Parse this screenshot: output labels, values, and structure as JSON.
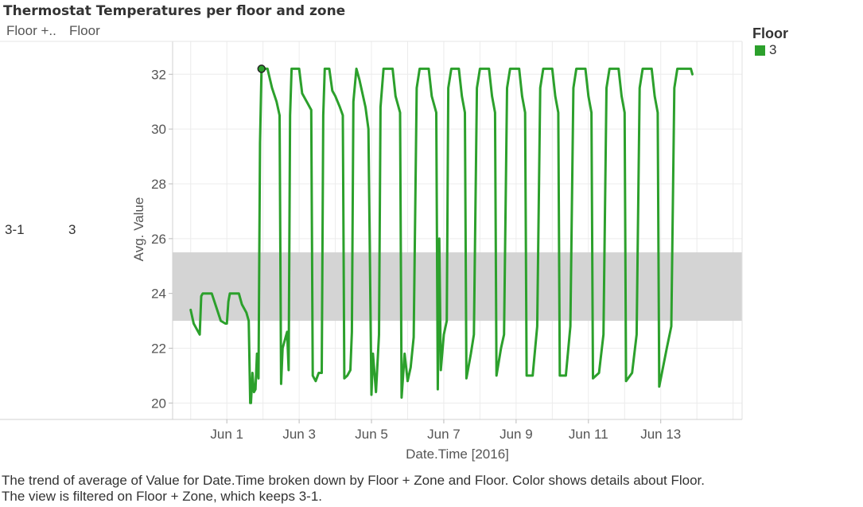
{
  "header": {
    "title": "Thermostat Temperatures per floor and zone",
    "row_header_1": "Floor +..",
    "row_header_2": "Floor",
    "row_value_1": "3-1",
    "row_value_2": "3"
  },
  "legend": {
    "title": "Floor",
    "items": [
      {
        "label": "3",
        "color": "#2ca02c"
      }
    ]
  },
  "caption": "The trend of average of Value for Date.Time broken down by Floor + Zone and Floor.  Color shows details about Floor. The view is filtered on Floor + Zone, which keeps 3-1.",
  "chart_data": {
    "type": "line",
    "title": "Thermostat Temperatures per floor and zone",
    "xlabel": "Date.Time [2016]",
    "ylabel": "Avg. Value",
    "x_tick_labels": [
      "Jun 1",
      "Jun 3",
      "Jun 5",
      "Jun 7",
      "Jun 9",
      "Jun 11",
      "Jun 13"
    ],
    "y_ticks": [
      20,
      22,
      24,
      26,
      28,
      30,
      32
    ],
    "xlim": [
      "2016-05-30T12:00",
      "2016-06-15T06:00"
    ],
    "ylim": [
      19.4,
      33.2
    ],
    "grid": true,
    "reference_band": {
      "from": 23.0,
      "to": 25.5,
      "color": "#d4d4d4"
    },
    "line_color": "#2ca02c",
    "series": [
      {
        "name": "3",
        "points": [
          [
            "2016-05-31T00:00",
            23.4
          ],
          [
            "2016-05-31T02:00",
            22.9
          ],
          [
            "2016-05-31T06:00",
            22.5
          ],
          [
            "2016-05-31T07:00",
            23.9
          ],
          [
            "2016-05-31T08:00",
            24.0
          ],
          [
            "2016-05-31T14:00",
            24.0
          ],
          [
            "2016-05-31T17:00",
            23.5
          ],
          [
            "2016-05-31T20:00",
            23.0
          ],
          [
            "2016-05-31T23:00",
            22.9
          ],
          [
            "2016-06-01T00:00",
            22.9
          ],
          [
            "2016-06-01T01:00",
            23.7
          ],
          [
            "2016-06-01T02:00",
            24.0
          ],
          [
            "2016-06-01T08:00",
            24.0
          ],
          [
            "2016-06-01T10:00",
            23.6
          ],
          [
            "2016-06-01T13:00",
            23.3
          ],
          [
            "2016-06-01T14:30",
            23.0
          ],
          [
            "2016-06-01T15:30",
            20.0
          ],
          [
            "2016-06-01T16:00",
            20.0
          ],
          [
            "2016-06-01T17:00",
            21.1
          ],
          [
            "2016-06-01T18:00",
            20.4
          ],
          [
            "2016-06-01T19:00",
            20.5
          ],
          [
            "2016-06-01T20:00",
            21.8
          ],
          [
            "2016-06-01T21:00",
            20.9
          ],
          [
            "2016-06-01T22:00",
            29.5
          ],
          [
            "2016-06-01T23:00",
            32.2
          ],
          [
            "2016-06-02T03:00",
            32.2
          ],
          [
            "2016-06-02T06:00",
            31.5
          ],
          [
            "2016-06-02T09:00",
            31.0
          ],
          [
            "2016-06-02T11:00",
            30.5
          ],
          [
            "2016-06-02T12:00",
            20.7
          ],
          [
            "2016-06-02T13:00",
            22.0
          ],
          [
            "2016-06-02T15:00",
            22.4
          ],
          [
            "2016-06-02T16:00",
            22.6
          ],
          [
            "2016-06-02T17:00",
            21.2
          ],
          [
            "2016-06-02T18:00",
            30.5
          ],
          [
            "2016-06-02T19:00",
            32.2
          ],
          [
            "2016-06-03T00:00",
            32.2
          ],
          [
            "2016-06-03T02:00",
            31.3
          ],
          [
            "2016-06-03T05:00",
            31.0
          ],
          [
            "2016-06-03T08:00",
            30.7
          ],
          [
            "2016-06-03T09:00",
            21.0
          ],
          [
            "2016-06-03T11:00",
            20.8
          ],
          [
            "2016-06-03T13:00",
            21.1
          ],
          [
            "2016-06-03T15:00",
            21.1
          ],
          [
            "2016-06-03T16:00",
            30.5
          ],
          [
            "2016-06-03T17:00",
            32.2
          ],
          [
            "2016-06-03T20:00",
            32.2
          ],
          [
            "2016-06-03T22:00",
            31.4
          ],
          [
            "2016-06-04T00:00",
            31.2
          ],
          [
            "2016-06-04T03:00",
            30.8
          ],
          [
            "2016-06-04T05:00",
            30.5
          ],
          [
            "2016-06-04T06:00",
            20.9
          ],
          [
            "2016-06-04T08:00",
            21.0
          ],
          [
            "2016-06-04T10:00",
            21.2
          ],
          [
            "2016-06-04T11:00",
            22.6
          ],
          [
            "2016-06-04T12:00",
            31.0
          ],
          [
            "2016-06-04T14:00",
            32.2
          ],
          [
            "2016-06-04T16:00",
            31.8
          ],
          [
            "2016-06-04T20:00",
            30.8
          ],
          [
            "2016-06-04T22:00",
            30.0
          ],
          [
            "2016-06-05T00:00",
            20.3
          ],
          [
            "2016-06-05T01:00",
            21.8
          ],
          [
            "2016-06-05T03:00",
            20.4
          ],
          [
            "2016-06-05T05:00",
            22.5
          ],
          [
            "2016-06-05T06:00",
            30.8
          ],
          [
            "2016-06-05T08:00",
            32.2
          ],
          [
            "2016-06-05T14:00",
            32.2
          ],
          [
            "2016-06-05T16:00",
            31.2
          ],
          [
            "2016-06-05T19:00",
            30.6
          ],
          [
            "2016-06-05T20:00",
            20.2
          ],
          [
            "2016-06-05T22:00",
            21.8
          ],
          [
            "2016-06-06T00:00",
            20.8
          ],
          [
            "2016-06-06T02:00",
            21.3
          ],
          [
            "2016-06-06T04:00",
            22.4
          ],
          [
            "2016-06-06T06:00",
            31.5
          ],
          [
            "2016-06-06T08:00",
            32.2
          ],
          [
            "2016-06-06T14:00",
            32.2
          ],
          [
            "2016-06-06T16:00",
            31.2
          ],
          [
            "2016-06-06T19:00",
            30.6
          ],
          [
            "2016-06-06T20:00",
            20.5
          ],
          [
            "2016-06-06T21:00",
            26.0
          ],
          [
            "2016-06-06T22:00",
            21.2
          ],
          [
            "2016-06-07T00:00",
            22.5
          ],
          [
            "2016-06-07T02:00",
            23.0
          ],
          [
            "2016-06-07T03:00",
            31.5
          ],
          [
            "2016-06-07T05:00",
            32.2
          ],
          [
            "2016-06-07T10:00",
            32.2
          ],
          [
            "2016-06-07T12:00",
            31.2
          ],
          [
            "2016-06-07T14:00",
            30.6
          ],
          [
            "2016-06-07T15:00",
            20.9
          ],
          [
            "2016-06-07T18:00",
            21.8
          ],
          [
            "2016-06-07T20:00",
            22.5
          ],
          [
            "2016-06-07T22:00",
            31.5
          ],
          [
            "2016-06-08T00:00",
            32.2
          ],
          [
            "2016-06-08T06:00",
            32.2
          ],
          [
            "2016-06-08T08:00",
            31.2
          ],
          [
            "2016-06-08T10:00",
            30.6
          ],
          [
            "2016-06-08T11:00",
            21.0
          ],
          [
            "2016-06-08T14:00",
            22.0
          ],
          [
            "2016-06-08T16:00",
            22.5
          ],
          [
            "2016-06-08T18:00",
            31.5
          ],
          [
            "2016-06-08T20:00",
            32.2
          ],
          [
            "2016-06-09T02:00",
            32.2
          ],
          [
            "2016-06-09T04:00",
            31.2
          ],
          [
            "2016-06-09T06:00",
            30.6
          ],
          [
            "2016-06-09T07:00",
            21.0
          ],
          [
            "2016-06-09T11:00",
            21.0
          ],
          [
            "2016-06-09T14:00",
            22.8
          ],
          [
            "2016-06-09T16:00",
            31.5
          ],
          [
            "2016-06-09T18:00",
            32.2
          ],
          [
            "2016-06-10T00:00",
            32.2
          ],
          [
            "2016-06-10T02:00",
            31.2
          ],
          [
            "2016-06-10T04:00",
            30.6
          ],
          [
            "2016-06-10T05:00",
            21.0
          ],
          [
            "2016-06-10T09:00",
            21.0
          ],
          [
            "2016-06-10T12:00",
            22.8
          ],
          [
            "2016-06-10T14:00",
            31.5
          ],
          [
            "2016-06-10T16:00",
            32.2
          ],
          [
            "2016-06-10T22:00",
            32.2
          ],
          [
            "2016-06-11T00:00",
            31.2
          ],
          [
            "2016-06-11T02:00",
            30.6
          ],
          [
            "2016-06-11T03:00",
            20.9
          ],
          [
            "2016-06-11T07:00",
            21.1
          ],
          [
            "2016-06-11T10:00",
            22.5
          ],
          [
            "2016-06-11T12:00",
            31.5
          ],
          [
            "2016-06-11T14:00",
            32.2
          ],
          [
            "2016-06-11T20:00",
            32.2
          ],
          [
            "2016-06-11T22:00",
            31.2
          ],
          [
            "2016-06-12T00:00",
            30.6
          ],
          [
            "2016-06-12T01:00",
            20.8
          ],
          [
            "2016-06-12T05:00",
            21.1
          ],
          [
            "2016-06-12T08:00",
            22.5
          ],
          [
            "2016-06-12T10:00",
            31.5
          ],
          [
            "2016-06-12T12:00",
            32.2
          ],
          [
            "2016-06-12T18:00",
            32.2
          ],
          [
            "2016-06-12T20:00",
            31.2
          ],
          [
            "2016-06-12T22:00",
            30.6
          ],
          [
            "2016-06-12T23:00",
            20.6
          ],
          [
            "2016-06-13T04:00",
            22.0
          ],
          [
            "2016-06-13T07:00",
            22.8
          ],
          [
            "2016-06-13T09:00",
            31.5
          ],
          [
            "2016-06-13T11:00",
            32.2
          ],
          [
            "2016-06-13T20:00",
            32.2
          ],
          [
            "2016-06-13T21:00",
            32.0
          ]
        ]
      }
    ]
  }
}
